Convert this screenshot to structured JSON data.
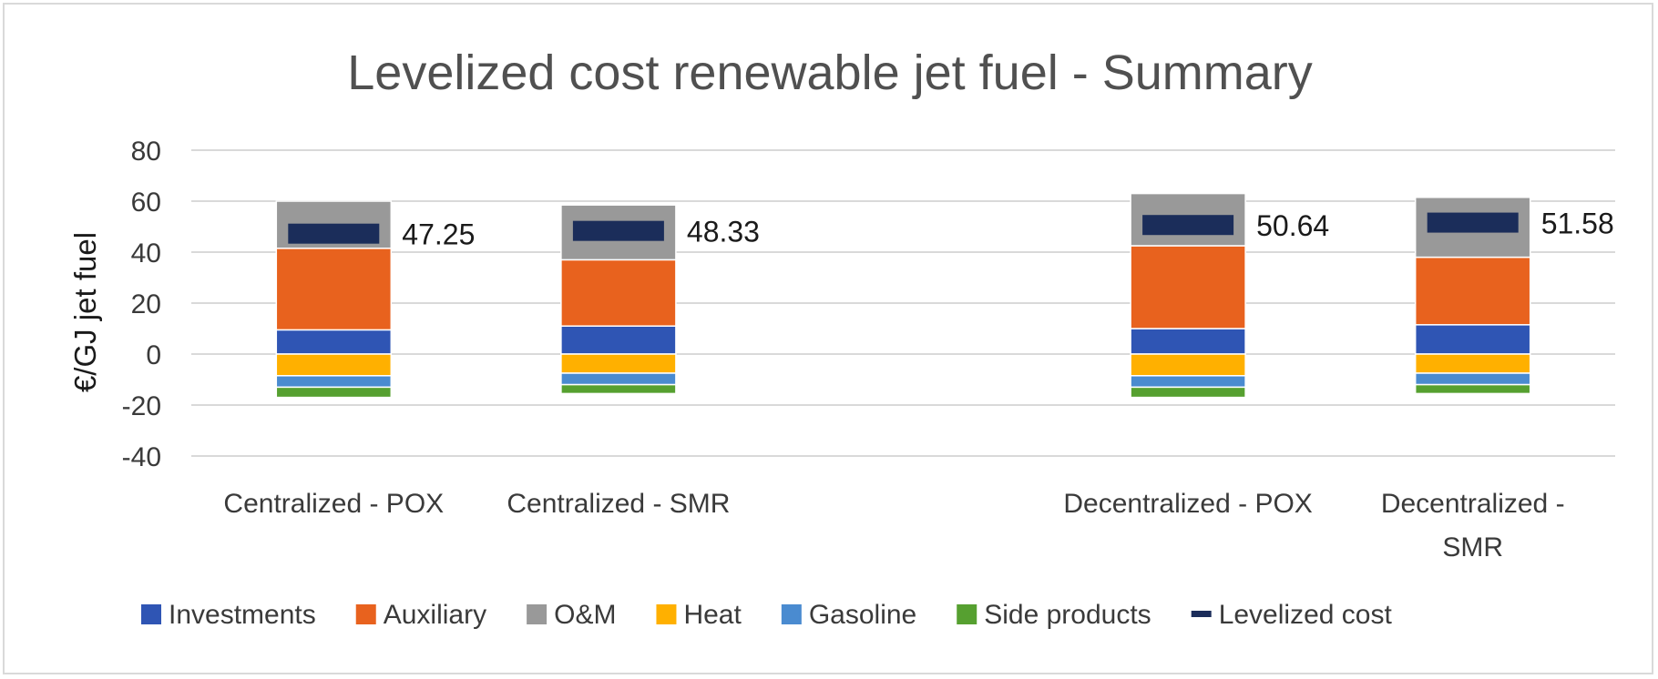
{
  "chart_data": {
    "type": "bar",
    "stacked": true,
    "title": "Levelized cost renewable jet fuel - Summary",
    "ylabel": "€/GJ jet fuel",
    "xlabel": "",
    "ylim": [
      -40,
      80
    ],
    "yticks": [
      80,
      60,
      40,
      20,
      0,
      -20,
      -40
    ],
    "grid": true,
    "legend_position": "bottom",
    "categories": [
      {
        "label": [
          "Centralized - POX"
        ],
        "slot": 0
      },
      {
        "label": [
          "Centralized - SMR"
        ],
        "slot": 1
      },
      {
        "label": [
          "Decentralized - POX"
        ],
        "slot": 3
      },
      {
        "label": [
          "Decentralized -",
          "SMR"
        ],
        "slot": 4
      }
    ],
    "series": [
      {
        "name": "Investments",
        "color": "#2f55b4",
        "values": [
          9.5,
          11,
          10,
          11.5
        ]
      },
      {
        "name": "Auxiliary",
        "color": "#e8621e",
        "values": [
          32,
          26,
          32.5,
          26.5
        ]
      },
      {
        "name": "O&M",
        "color": "#999999",
        "values": [
          18.5,
          21.5,
          20.5,
          23.5
        ]
      },
      {
        "name": "Heat",
        "color": "#ffb000",
        "values": [
          -8.5,
          -7.5,
          -8.5,
          -7.5
        ]
      },
      {
        "name": "Gasoline",
        "color": "#4a8bd0",
        "values": [
          -4.5,
          -4.5,
          -4.5,
          -4.5
        ]
      },
      {
        "name": "Side products",
        "color": "#56a030",
        "values": [
          -4,
          -3.5,
          -4,
          -3.5
        ]
      }
    ],
    "levelized_cost": {
      "name": "Levelized cost",
      "color": "#1b2d5a",
      "values": [
        47.25,
        48.33,
        50.64,
        51.58
      ]
    }
  }
}
